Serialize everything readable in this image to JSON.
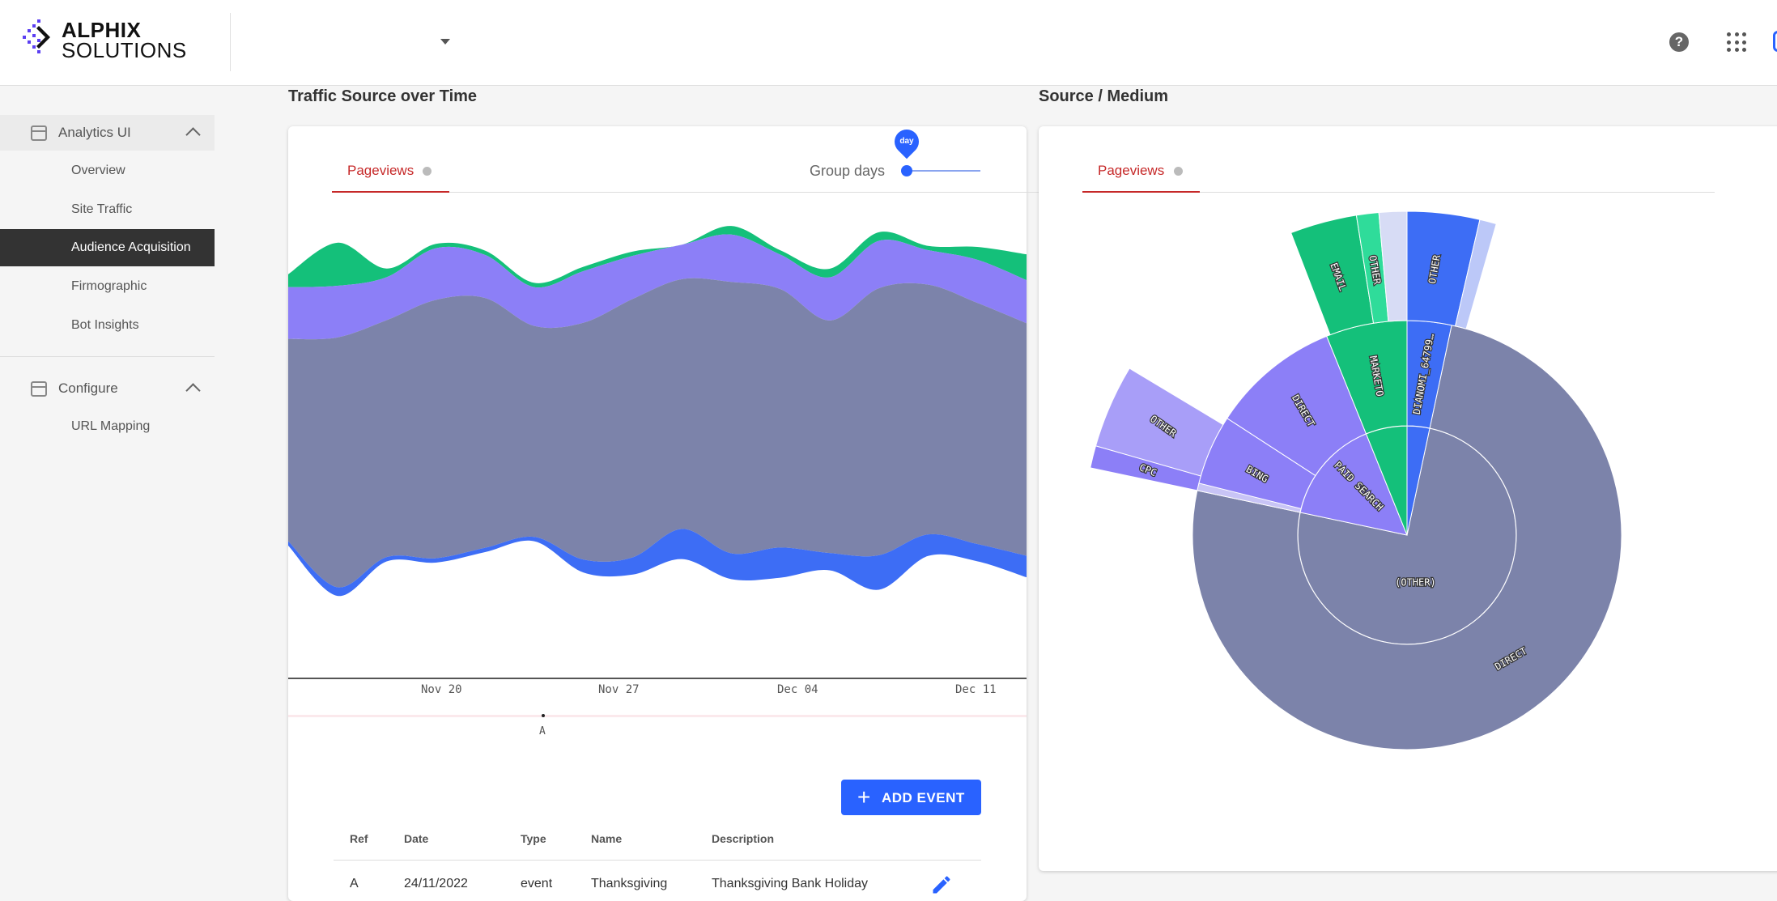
{
  "brand": {
    "line1": "ALPHIX",
    "line2": "SOLUTIONS"
  },
  "header": {
    "help_icon": "help-circle-icon",
    "apps_icon": "apps-grid-icon"
  },
  "sidebar": {
    "groups": [
      {
        "label": "Analytics UI",
        "items": [
          "Overview",
          "Site Traffic",
          "Audience Acquisition",
          "Firmographic",
          "Bot Insights"
        ]
      },
      {
        "label": "Configure",
        "items": [
          "URL Mapping"
        ]
      }
    ],
    "selected": "Audience Acquisition"
  },
  "traffic": {
    "title": "Traffic Source over Time",
    "tab": "Pageviews",
    "group_label": "Group days",
    "slider_value": "day",
    "ticks": [
      "Nov 20",
      "Nov 27",
      "Dec 04",
      "Dec 11"
    ],
    "event_marker": "A",
    "add_event": "ADD EVENT",
    "table": {
      "headers": [
        "Ref",
        "Date",
        "Type",
        "Name",
        "Description"
      ],
      "rows": [
        {
          "ref": "A",
          "date": "24/11/2022",
          "type": "event",
          "name": "Thanksgiving",
          "description": "Thanksgiving Bank Holiday"
        }
      ]
    }
  },
  "source": {
    "title": "Source / Medium",
    "tab": "Pageviews"
  },
  "colors": {
    "slate": "#7c83aa",
    "purple": "#8c7ff7",
    "light_purple": "#a89ef8",
    "green": "#14c07a",
    "light_green": "#2fdc9a",
    "blue": "#3d6df5",
    "accent_red": "#c62828",
    "button_blue": "#2962ff"
  },
  "chart_data": [
    {
      "type": "area",
      "title": "Traffic Source over Time",
      "series": [
        {
          "name": "",
          "color": "#7c83aa",
          "values": [
            0.47,
            0.58,
            0.55,
            0.6,
            0.58,
            0.49,
            0.55,
            0.6,
            0.58,
            0.63,
            0.6,
            0.54,
            0.62,
            0.58,
            0.56,
            0.54
          ]
        },
        {
          "name": "",
          "color": "#8c7ff7",
          "values": [
            0.12,
            0.12,
            0.1,
            0.12,
            0.1,
            0.09,
            0.12,
            0.1,
            0.08,
            0.11,
            0.08,
            0.1,
            0.11,
            0.08,
            0.1,
            0.1
          ]
        },
        {
          "name": "",
          "color": "#14c07a",
          "values": [
            0.03,
            0.1,
            0.02,
            0.01,
            0.01,
            0.01,
            0.01,
            0.01,
            0.0,
            0.02,
            0.01,
            0.02,
            0.02,
            0.01,
            0.03,
            0.06
          ]
        },
        {
          "name": "",
          "color": "#3d6df5",
          "values": [
            0.01,
            0.02,
            0.01,
            0.01,
            0.01,
            0.01,
            0.03,
            0.04,
            0.07,
            0.06,
            0.07,
            0.04,
            0.08,
            0.05,
            0.04,
            0.05
          ]
        }
      ],
      "xticks": [
        "Nov 20",
        "Nov 27",
        "Dec 04",
        "Dec 11"
      ]
    },
    {
      "type": "pie",
      "title": "Source / Medium",
      "rings": [
        {
          "level": 1,
          "slices": [
            {
              "label": "(OTHER)",
              "value": 0.77,
              "color": "#7c83aa"
            },
            {
              "label": "PAID SEARCH",
              "value": 0.12,
              "color": "#8c7ff7"
            },
            {
              "label": "",
              "value": 0.05,
              "color": "#14c07a"
            },
            {
              "label": "",
              "value": 0.06,
              "color": "#3d6df5"
            }
          ]
        },
        {
          "level": 2,
          "slices": [
            {
              "label": "DIRECT",
              "value": 0.77,
              "color": "#7c83aa"
            },
            {
              "label": "BING",
              "value": 0.06,
              "color": "#8c7ff7"
            },
            {
              "label": "DIRECT",
              "value": 0.06,
              "color": "#8c7ff7"
            },
            {
              "label": "MARKETO",
              "value": 0.05,
              "color": "#14c07a"
            },
            {
              "label": "DIANOMI_64799...",
              "value": 0.06,
              "color": "#3d6df5"
            }
          ]
        },
        {
          "level": 3,
          "slices": [
            {
              "label": "CPC",
              "value": 0.02,
              "color": "#8c7ff7"
            },
            {
              "label": "OTHER",
              "value": 0.04,
              "color": "#a89ef8"
            },
            {
              "label": "EMAIL",
              "value": 0.03,
              "color": "#14c07a"
            },
            {
              "label": "OTHER",
              "value": 0.015,
              "color": "#2fdc9a"
            },
            {
              "label": "OTHER",
              "value": 0.04,
              "color": "#3d6df5"
            }
          ]
        }
      ]
    }
  ]
}
